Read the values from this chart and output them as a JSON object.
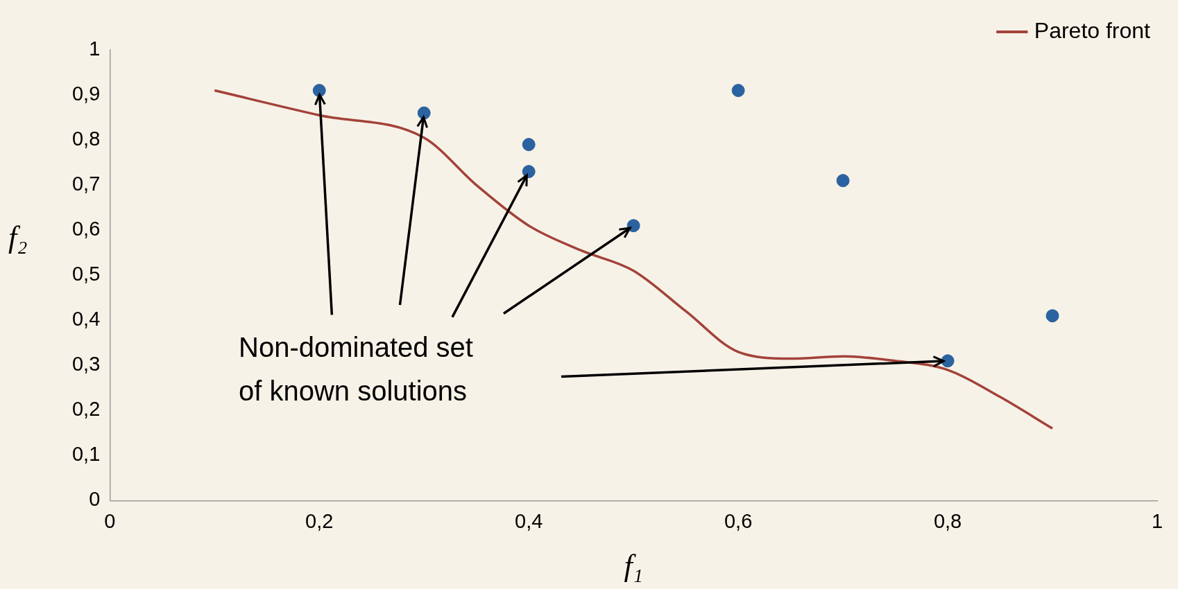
{
  "chart_data": {
    "type": "scatter",
    "xlabel": "f₁",
    "ylabel": "f₂",
    "xlim": [
      0,
      1
    ],
    "ylim": [
      0,
      1
    ],
    "xticks": [
      0,
      {
        "value": 0.2,
        "label": "0,2"
      },
      {
        "value": 0.4,
        "label": "0,4"
      },
      {
        "value": 0.6,
        "label": "0,6"
      },
      {
        "value": 0.8,
        "label": "0,8"
      },
      1
    ],
    "yticks": [
      0,
      {
        "value": 0.1,
        "label": "0,1"
      },
      {
        "value": 0.2,
        "label": "0,2"
      },
      {
        "value": 0.3,
        "label": "0,3"
      },
      {
        "value": 0.4,
        "label": "0,4"
      },
      {
        "value": 0.5,
        "label": "0,5"
      },
      {
        "value": 0.6,
        "label": "0,6"
      },
      {
        "value": 0.7,
        "label": "0,7"
      },
      {
        "value": 0.8,
        "label": "0,8"
      },
      {
        "value": 0.9,
        "label": "0,9"
      },
      1
    ],
    "grid": false,
    "legend": "top right",
    "annotations": [
      {
        "text": "Non-dominated set of known solutions",
        "x": 0.2,
        "y": 0.91
      }
    ],
    "series": [
      {
        "type": "scatter",
        "color": "#2b62a0",
        "marker": "circle",
        "x": [
          0.2,
          0.3,
          0.4,
          0.4,
          0.5,
          0.6,
          0.7,
          0.8,
          0.9
        ],
        "values": [
          0.91,
          0.86,
          0.79,
          0.73,
          0.61,
          0.91,
          0.71,
          0.31,
          0.41
        ]
      },
      {
        "type": "line",
        "name": "Pareto front",
        "color": "#a3423a",
        "marker": "none",
        "x": [
          0.1,
          0.2,
          0.3,
          0.35,
          0.4,
          0.45,
          0.5,
          0.55,
          0.6,
          0.65,
          0.7,
          0.75,
          0.8,
          0.85,
          0.9
        ],
        "values": [
          0.91,
          0.855,
          0.805,
          0.7,
          0.61,
          0.555,
          0.51,
          0.42,
          0.33,
          0.315,
          0.32,
          0.31,
          0.29,
          0.23,
          0.16
        ]
      }
    ]
  }
}
